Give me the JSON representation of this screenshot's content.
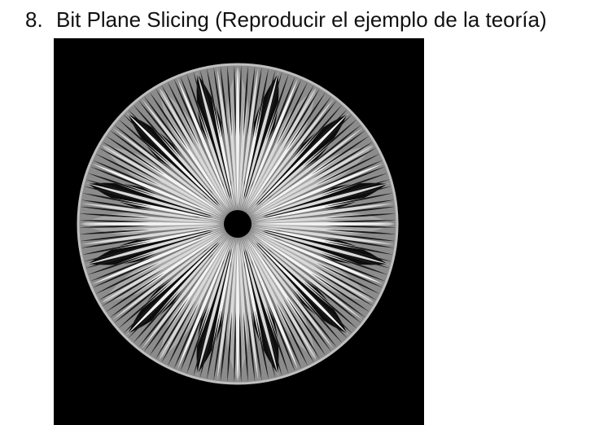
{
  "item": {
    "number": "8.",
    "title": "Bit Plane Slicing (Reproducir el ejemplo de la teoría)"
  },
  "figure": {
    "description_icon": "fractal-disc-image",
    "background_color": "#000000",
    "tones": [
      "#d9d9d9",
      "#a8a8a8",
      "#7a7a7a",
      "#f2f2f2"
    ]
  }
}
